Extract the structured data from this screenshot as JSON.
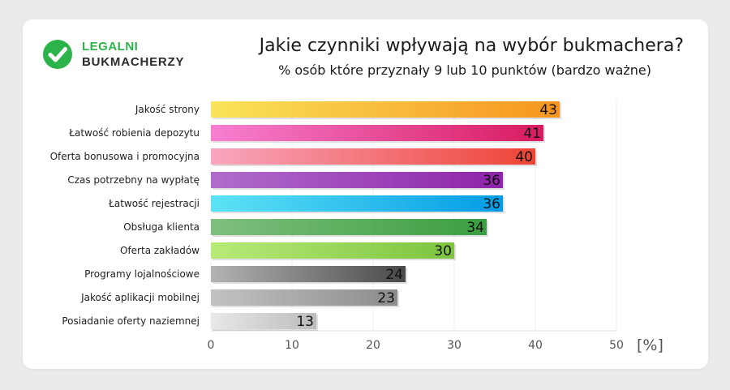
{
  "brand": {
    "line1": "LEGALNI",
    "line2": "BUKMACHERZY",
    "icon": "check-circle-icon",
    "color": "#2cb34a"
  },
  "chart_data": {
    "type": "bar",
    "orientation": "horizontal",
    "title": "Jakie czynniki wpływają na wybór bukmachera?",
    "subtitle": "% osób które przyznały 9 lub 10 punktów (bardzo ważne)",
    "categories": [
      "Jakość strony",
      "Łatwość robienia depozytu",
      "Oferta bonusowa i promocyjna",
      "Czas potrzebny na wypłatę",
      "Łatwość rejestracji",
      "Obsługa klienta",
      "Oferta zakładów",
      "Programy lojalnościowe",
      "Jakość aplikacji mobilnej",
      "Posiadanie oferty naziemnej"
    ],
    "values": [
      43,
      41,
      40,
      36,
      36,
      34,
      30,
      24,
      23,
      13
    ],
    "colors": [
      [
        "#f9e45a",
        "#f7941d"
      ],
      [
        "#f77fd1",
        "#d81b60"
      ],
      [
        "#f8a6be",
        "#ee4436"
      ],
      [
        "#b06ccc",
        "#8e24aa"
      ],
      [
        "#5ee3f5",
        "#039be5"
      ],
      [
        "#7fbf7f",
        "#3b9e3f"
      ],
      [
        "#b8ea78",
        "#7cc43f"
      ],
      [
        "#b3b3b3",
        "#4a4a4a"
      ],
      [
        "#c2c2c2",
        "#8c8c8c"
      ],
      [
        "#e8e8e8",
        "#bcbcbc"
      ]
    ],
    "xlim": [
      0,
      50
    ],
    "xticks": [
      "0",
      "10",
      "20",
      "30",
      "40",
      "50"
    ],
    "xunit": "[%]",
    "grid": true,
    "legend": "none"
  }
}
